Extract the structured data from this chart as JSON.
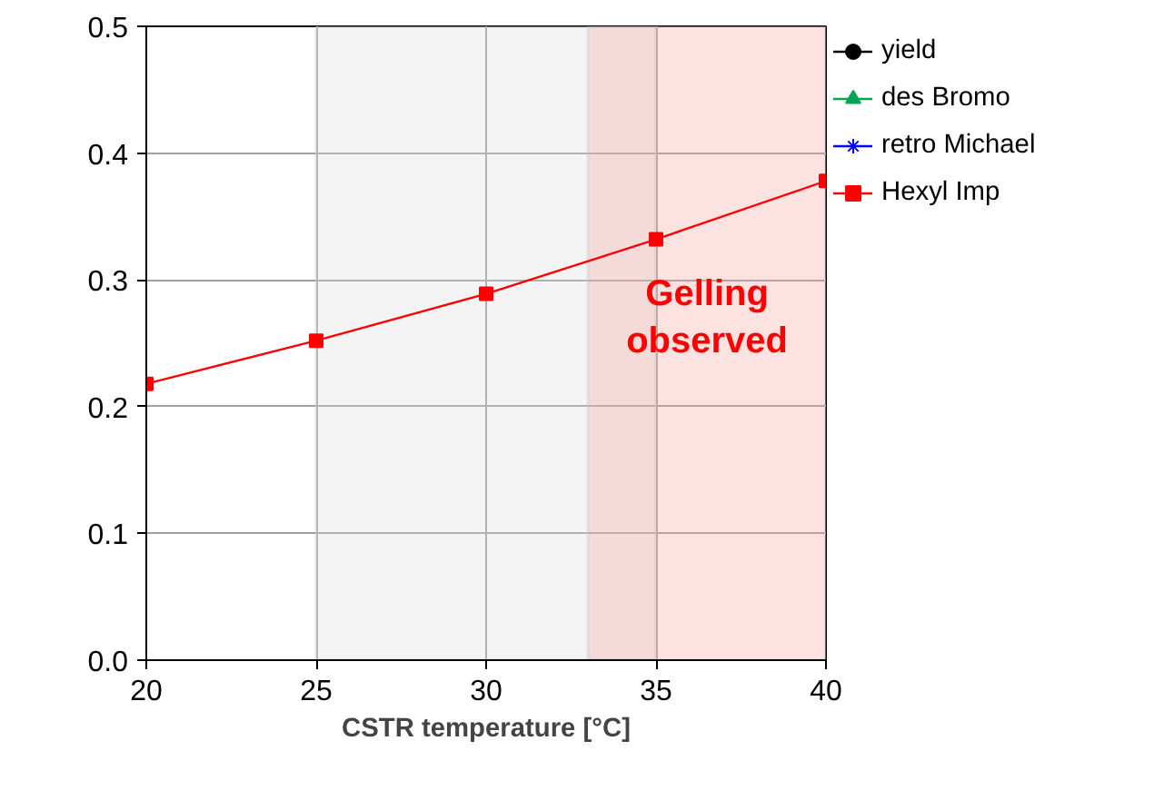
{
  "chart_data": {
    "type": "line",
    "xlabel": "CSTR temperature [°C]",
    "x": [
      20,
      25,
      30,
      35,
      40
    ],
    "series": [
      {
        "name": "yield",
        "color": "#000000",
        "marker": "circle",
        "values": [
          null,
          null,
          null,
          null,
          null
        ]
      },
      {
        "name": "des Bromo",
        "color": "#00a651",
        "marker": "triangle",
        "values": [
          null,
          null,
          null,
          null,
          null
        ]
      },
      {
        "name": "retro Michael",
        "color": "#0000ff",
        "marker": "star",
        "values": [
          null,
          null,
          null,
          null,
          null
        ]
      },
      {
        "name": "Hexyl Imp",
        "color": "#ff0000",
        "marker": "square",
        "values": [
          0.218,
          0.252,
          0.289,
          0.332,
          0.378
        ]
      }
    ],
    "xlim": [
      20,
      40
    ],
    "xticks": [
      20,
      25,
      30,
      35,
      40
    ],
    "ylim": [
      0,
      0.5
    ],
    "yticks": [
      {
        "value": 0,
        "label": "0.0"
      },
      0.1,
      0.2,
      0.3,
      0.4,
      0.5
    ],
    "bands": [
      {
        "axis": "x",
        "from": 25,
        "to": 35,
        "color": "#d9d9d9"
      },
      {
        "axis": "x",
        "from": 33,
        "to": 40,
        "color": "#f8a0a0",
        "label": "Gelling\nobserved"
      }
    ],
    "grid": true,
    "legend": "right",
    "line_style": "solid"
  }
}
